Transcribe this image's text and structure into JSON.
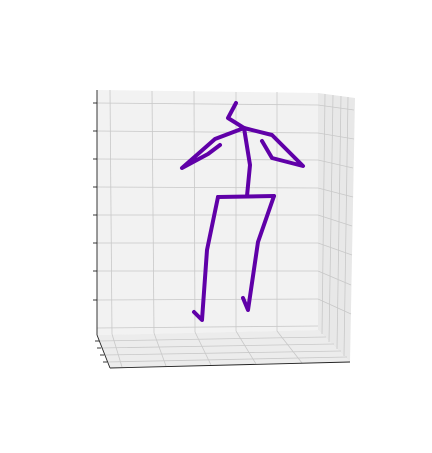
{
  "chart_data": {
    "type": "line3d",
    "color": "#6000a8",
    "grid": true
  }
}
